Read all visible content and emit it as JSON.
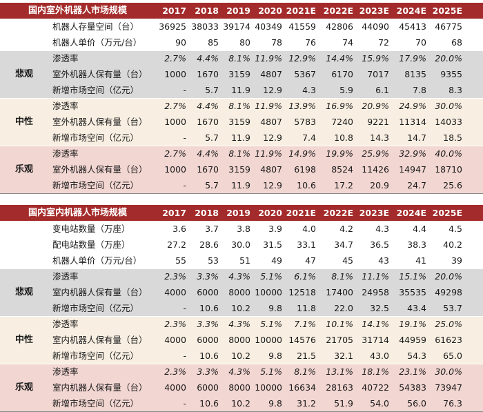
{
  "colors": {
    "header_bg": "#a42b2b",
    "pessimistic_bg": "#d9d9d9",
    "neutral_bg": "#f8efe2",
    "optimistic_bg": "#f2d6d2"
  },
  "outdoor": {
    "title": "国内室外机器人市场规模",
    "years": [
      "2017",
      "2018",
      "2019",
      "2020",
      "2021E",
      "2022E",
      "2023E",
      "2024E",
      "2025E"
    ],
    "base_rows": [
      {
        "label": "机器人存量空间（台）",
        "values": [
          "36925",
          "38033",
          "39174",
          "40349",
          "41559",
          "42806",
          "44090",
          "45413",
          "46775"
        ]
      },
      {
        "label": "机器人单价（万元/台）",
        "values": [
          "90",
          "85",
          "80",
          "78",
          "76",
          "74",
          "72",
          "70",
          "68"
        ]
      }
    ],
    "scenarios": [
      {
        "name": "悲观",
        "rows": [
          {
            "label": "渗透率",
            "values": [
              "2.7%",
              "4.4%",
              "8.1%",
              "11.9%",
              "12.9%",
              "14.4%",
              "15.9%",
              "17.9%",
              "20.0%"
            ]
          },
          {
            "label": "室外机器人保有量（台）",
            "values": [
              "1000",
              "1670",
              "3159",
              "4807",
              "5367",
              "6170",
              "7017",
              "8135",
              "9355"
            ]
          },
          {
            "label": "新增市场空间（亿元）",
            "values": [
              "-",
              "5.7",
              "11.9",
              "12.9",
              "4.3",
              "5.9",
              "6.1",
              "7.8",
              "8.3"
            ]
          }
        ]
      },
      {
        "name": "中性",
        "rows": [
          {
            "label": "渗透率",
            "values": [
              "2.7%",
              "4.4%",
              "8.1%",
              "11.9%",
              "13.9%",
              "16.9%",
              "20.9%",
              "24.9%",
              "30.0%"
            ]
          },
          {
            "label": "室外机器人保有量（台）",
            "values": [
              "1000",
              "1670",
              "3159",
              "4807",
              "5783",
              "7240",
              "9221",
              "11314",
              "14033"
            ]
          },
          {
            "label": "新增市场空间（亿元）",
            "values": [
              "-",
              "5.7",
              "11.9",
              "12.9",
              "7.4",
              "10.8",
              "14.3",
              "14.7",
              "18.5"
            ]
          }
        ]
      },
      {
        "name": "乐观",
        "rows": [
          {
            "label": "渗透率",
            "values": [
              "2.7%",
              "4.4%",
              "8.1%",
              "11.9%",
              "14.9%",
              "19.9%",
              "25.9%",
              "32.9%",
              "40.0%"
            ]
          },
          {
            "label": "室外机器人保有量（台）",
            "values": [
              "1000",
              "1670",
              "3159",
              "4807",
              "6198",
              "8524",
              "11426",
              "14947",
              "18710"
            ]
          },
          {
            "label": "新增市场空间（亿元）",
            "values": [
              "-",
              "5.7",
              "11.9",
              "12.9",
              "10.6",
              "17.2",
              "20.9",
              "24.7",
              "25.6"
            ]
          }
        ]
      }
    ]
  },
  "indoor": {
    "title": "国内室内机器人市场规模",
    "years": [
      "2017",
      "2018",
      "2019",
      "2020",
      "2021E",
      "2022E",
      "2023E",
      "2024E",
      "2025E"
    ],
    "base_rows": [
      {
        "label": "变电站数量（万座）",
        "values": [
          "3.6",
          "3.7",
          "3.8",
          "3.9",
          "4.0",
          "4.2",
          "4.3",
          "4.4",
          "4.5"
        ]
      },
      {
        "label": "配电站数量（万座）",
        "values": [
          "27.2",
          "28.6",
          "30.0",
          "31.5",
          "33.1",
          "34.7",
          "36.5",
          "38.3",
          "40.2"
        ]
      },
      {
        "label": "机器人单价（万元/台）",
        "values": [
          "55",
          "53",
          "51",
          "49",
          "47",
          "45",
          "43",
          "41",
          "39"
        ]
      }
    ],
    "scenarios": [
      {
        "name": "悲观",
        "rows": [
          {
            "label": "渗透率",
            "values": [
              "2.3%",
              "3.3%",
              "4.3%",
              "5.1%",
              "6.1%",
              "8.1%",
              "11.1%",
              "15.1%",
              "20.0%"
            ]
          },
          {
            "label": "室内机器人保有量（台）",
            "values": [
              "4000",
              "6000",
              "8000",
              "10000",
              "12518",
              "17400",
              "24958",
              "35535",
              "49298"
            ]
          },
          {
            "label": "新增市场空间（亿元）",
            "values": [
              "-",
              "10.6",
              "10.2",
              "9.8",
              "11.8",
              "22.0",
              "32.5",
              "43.4",
              "53.7"
            ]
          }
        ]
      },
      {
        "name": "中性",
        "rows": [
          {
            "label": "渗透率",
            "values": [
              "2.3%",
              "3.3%",
              "4.3%",
              "5.1%",
              "7.1%",
              "10.1%",
              "14.1%",
              "19.1%",
              "25.0%"
            ]
          },
          {
            "label": "室内机器人保有量（台）",
            "values": [
              "4000",
              "6000",
              "8000",
              "10000",
              "14576",
              "21705",
              "31714",
              "44959",
              "61623"
            ]
          },
          {
            "label": "新增市场空间（亿元）",
            "values": [
              "-",
              "10.6",
              "10.2",
              "9.8",
              "21.5",
              "32.1",
              "43.0",
              "54.3",
              "65.0"
            ]
          }
        ]
      },
      {
        "name": "乐观",
        "rows": [
          {
            "label": "渗透率",
            "values": [
              "2.3%",
              "3.3%",
              "4.3%",
              "5.1%",
              "8.1%",
              "13.1%",
              "18.1%",
              "23.1%",
              "30.0%"
            ]
          },
          {
            "label": "室内机器人保有量（台）",
            "values": [
              "4000",
              "6000",
              "8000",
              "10000",
              "16634",
              "28163",
              "40722",
              "54383",
              "73947"
            ]
          },
          {
            "label": "新增市场空间（亿元）",
            "values": [
              "-",
              "10.6",
              "10.2",
              "9.8",
              "31.2",
              "51.9",
              "54.0",
              "56.0",
              "76.3"
            ]
          }
        ]
      }
    ]
  }
}
